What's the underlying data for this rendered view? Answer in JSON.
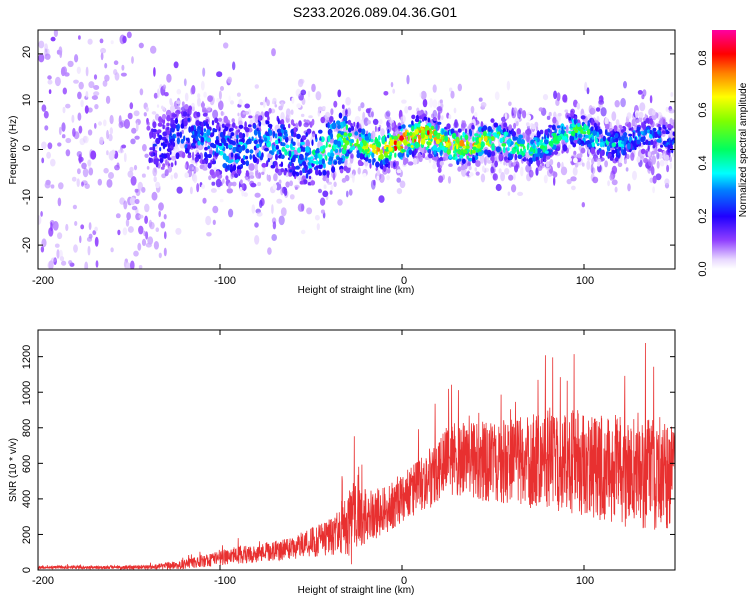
{
  "title": "S233.2026.089.04.36.G01",
  "chart_data": [
    {
      "type": "heatmap",
      "xlabel": "Height of straight line (km)",
      "ylabel": "Frequency (Hz)",
      "xlim": [
        -200,
        150
      ],
      "ylim": [
        -25,
        25
      ],
      "xticks": [
        -200,
        -100,
        0,
        100
      ],
      "yticks": [
        -20,
        -10,
        0,
        10,
        20
      ],
      "colorbar": {
        "label": "Normalized spectral amplitude",
        "range": [
          0.0,
          0.9
        ],
        "ticks": [
          0.0,
          0.2,
          0.4,
          0.6,
          0.8
        ],
        "tick_labels": [
          "0.0",
          "0.2",
          "0.4",
          "0.6",
          "0.8"
        ],
        "colormap": [
          "#ffffff",
          "#e0c8ff",
          "#8000ff",
          "#0000ff",
          "#00ffff",
          "#00ff00",
          "#ffff00",
          "#ff8000",
          "#ff0000",
          "#ff00ff"
        ]
      },
      "ridge": {
        "description_x": [
          -200,
          -140,
          -120,
          -100,
          -50,
          -25,
          0,
          20,
          40,
          60,
          80,
          100,
          120,
          150
        ],
        "frequency_center": [
          0,
          2,
          2,
          1,
          0,
          1,
          1.5,
          2,
          1.5,
          0.5,
          2,
          3,
          2,
          2
        ],
        "peak_amplitude": [
          0.15,
          0.2,
          0.3,
          0.35,
          0.4,
          0.6,
          0.85,
          0.75,
          0.7,
          0.5,
          0.45,
          0.5,
          0.35,
          0.3
        ]
      }
    },
    {
      "type": "line",
      "xlabel": "Height of straight line (km)",
      "ylabel": "SNR (10 * v/v)",
      "xlim": [
        -200,
        150
      ],
      "ylim": [
        0,
        1350
      ],
      "xticks": [
        -200,
        -100,
        0,
        100
      ],
      "yticks": [
        0,
        200,
        400,
        600,
        800,
        1000,
        1200
      ],
      "color": "#e83030",
      "envelope_x": [
        -200,
        -140,
        -120,
        -100,
        -60,
        -35,
        -28,
        -25,
        -20,
        -10,
        0,
        10,
        20,
        30,
        40,
        60,
        80,
        100,
        120,
        140,
        150
      ],
      "envelope_mean": [
        15,
        15,
        30,
        70,
        120,
        200,
        250,
        380,
        300,
        330,
        400,
        470,
        560,
        620,
        620,
        600,
        620,
        600,
        560,
        560,
        520
      ],
      "envelope_spread": [
        10,
        15,
        35,
        60,
        80,
        150,
        300,
        350,
        200,
        180,
        180,
        220,
        250,
        280,
        300,
        330,
        370,
        400,
        420,
        450,
        400
      ]
    }
  ],
  "labels": {
    "top_x_ticks": [
      "-200",
      "-100",
      "0",
      "100"
    ],
    "top_y_ticks": [
      "-20",
      "-10",
      "0",
      "10",
      "20"
    ],
    "bottom_x_ticks": [
      "-200",
      "-100",
      "0",
      "100"
    ],
    "bottom_y_ticks": [
      "0",
      "200",
      "400",
      "600",
      "800",
      "1000",
      "1200"
    ],
    "cb_ticks": [
      "0.0",
      "0.2",
      "0.4",
      "0.6",
      "0.8"
    ]
  }
}
